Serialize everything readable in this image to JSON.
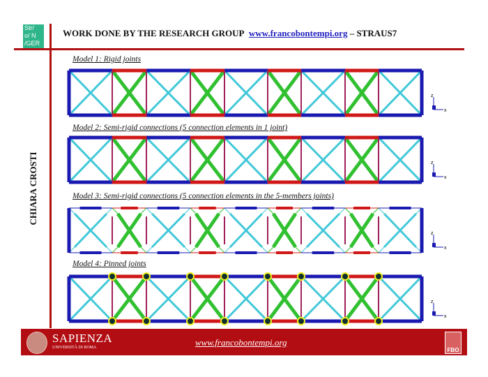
{
  "header": {
    "logo_text": [
      "Str/",
      "o/ N",
      "/GER"
    ],
    "title_prefix": "WORK DONE BY THE RESEARCH GROUP",
    "title_link": "www.francobontempi.org",
    "title_suffix": "– STRAUS7"
  },
  "author": "CHIARA CROSTI",
  "models": [
    {
      "label": "Model 1: Rigid joints",
      "joint_type": "rigid"
    },
    {
      "label": "Model 2: Semi-rigid connections (5 connection elements in 1 joint)",
      "joint_type": "semi-rigid-one"
    },
    {
      "label": "Model 3: Semi-rigid connections (5 connection elements in the 5-members joints)",
      "joint_type": "semi-rigid-five"
    },
    {
      "label": "Model 4: Pinned joints",
      "joint_type": "pinned"
    }
  ],
  "axis_labels": {
    "z": "z",
    "x": "x"
  },
  "colors": {
    "chord": "#1a1ab0",
    "chord_highlight": "#d01818",
    "brace": "#40c8d8",
    "brace_highlight": "#30c030",
    "vertical": "#a0205a",
    "accent": "#b01010",
    "pin": "#f0f020"
  },
  "footer": {
    "university": "SAPIENZA",
    "university_sub": "UNIVERSITÀ DI ROMA",
    "url": "www.francobontempi.org",
    "badge": "FBO"
  }
}
